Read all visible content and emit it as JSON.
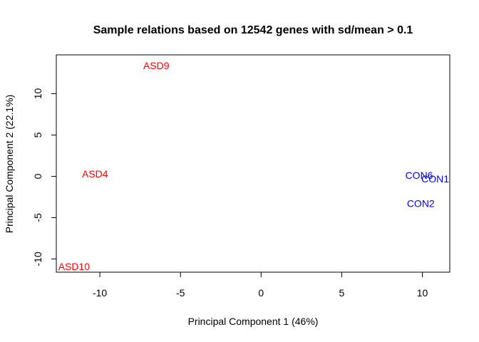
{
  "chart_data": {
    "type": "scatter",
    "title": "Sample relations based on 12542 genes with sd/mean > 0.1",
    "xlabel": "Principal Component 1 (46%)",
    "ylabel": "Principal Component 2 (22.1%)",
    "xlim": [
      -12.7,
      11.7
    ],
    "ylim": [
      -11.6,
      14.7
    ],
    "xticks": [
      -10,
      -5,
      0,
      5,
      10
    ],
    "xtick_labels": [
      "-10",
      "-5",
      "0",
      "5",
      "10"
    ],
    "yticks": [
      -10,
      -5,
      0,
      5,
      10
    ],
    "ytick_labels": [
      "-10",
      "-5",
      "0",
      "5",
      "10"
    ],
    "grid": false,
    "legend": "none",
    "colors": {
      "ASD": "#ff0000",
      "CON": "#0000ff"
    },
    "points": [
      {
        "label": "ASD9",
        "x": -6.5,
        "y": 13.4,
        "group": "ASD"
      },
      {
        "label": "ASD4",
        "x": -10.3,
        "y": 0.3,
        "group": "ASD"
      },
      {
        "label": "ASD10",
        "x": -11.6,
        "y": -10.9,
        "group": "ASD"
      },
      {
        "label": "CON6",
        "x": 9.8,
        "y": 0.1,
        "group": "CON"
      },
      {
        "label": "CON1",
        "x": 10.8,
        "y": -0.3,
        "group": "CON"
      },
      {
        "label": "CON2",
        "x": 9.9,
        "y": -3.3,
        "group": "CON"
      }
    ]
  }
}
